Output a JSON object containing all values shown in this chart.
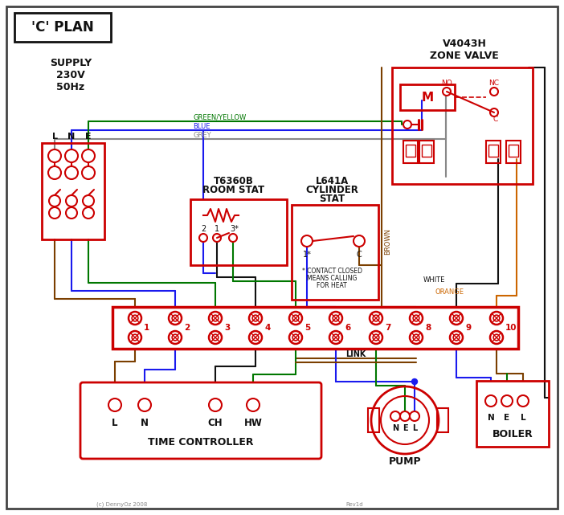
{
  "bg": "#ffffff",
  "red": "#cc0000",
  "blue": "#1a1aee",
  "green": "#007700",
  "grey": "#888888",
  "brown": "#7B3F00",
  "black": "#111111",
  "orange": "#cc6600",
  "title": "'C' PLAN",
  "zone_valve": "V4043H\nZONE VALVE",
  "room_stat_l1": "T6360B",
  "room_stat_l2": "ROOM STAT",
  "cyl_stat_l1": "L641A",
  "cyl_stat_l2": "CYLINDER",
  "cyl_stat_l3": "STAT",
  "tc_title": "TIME CONTROLLER",
  "pump_title": "PUMP",
  "boiler_title": "BOILER",
  "tc_terms": [
    "L",
    "N",
    "CH",
    "HW"
  ],
  "pump_terms": [
    "N",
    "E",
    "L"
  ],
  "boiler_terms": [
    "N",
    "E",
    "L"
  ],
  "contact_note": "* CONTACT CLOSED\n  MEANS CALLING\n    FOR HEAT",
  "copyright": "(c) DennyOz 2008",
  "rev": "Rev1d",
  "supply_label": "SUPPLY\n230V\n50Hz",
  "lne": [
    "L",
    "N",
    "E"
  ],
  "grey_label": "GREY",
  "blue_label": "BLUE",
  "gy_label": "GREEN/YELLOW",
  "brown_label": "BROWN",
  "white_label": "WHITE",
  "orange_label": "ORANGE",
  "link_label": "LINK"
}
